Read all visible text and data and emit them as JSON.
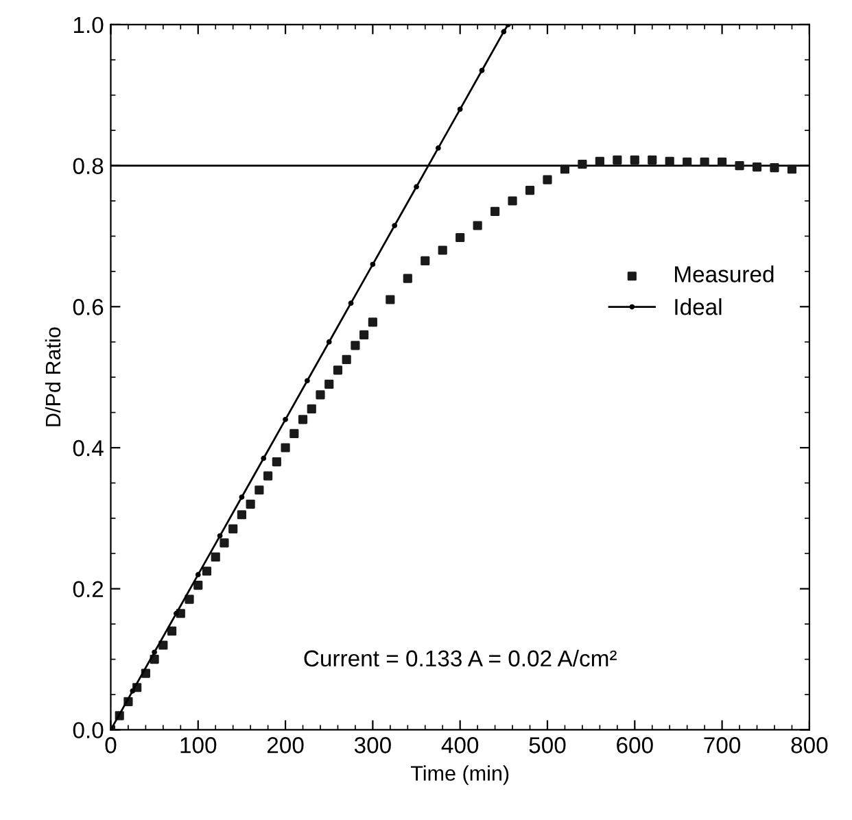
{
  "chart_data": {
    "type": "scatter",
    "xlabel": "Time (min)",
    "ylabel": "D/Pd Ratio",
    "annotations": [
      "Current = 0.133 A = 0.02 A/cm²"
    ],
    "xlim": [
      0,
      800
    ],
    "xticks": [
      0,
      100,
      200,
      300,
      400,
      500,
      600,
      700,
      800
    ],
    "ylim": [
      0,
      1
    ],
    "yticks": [
      {
        "value": 0,
        "label": "0.0"
      },
      0.2,
      0.4,
      0.6,
      0.8,
      {
        "value": 1,
        "label": "1.0"
      }
    ],
    "grid": false,
    "legend": "right",
    "ref_lines": [
      {
        "axis": "y",
        "value": 0.8,
        "color": "#000000"
      }
    ],
    "series": [
      {
        "name": "Measured",
        "marker": "square",
        "color": "#1a1a1a",
        "x": [
          0,
          10,
          20,
          30,
          40,
          50,
          60,
          70,
          80,
          90,
          100,
          110,
          120,
          130,
          140,
          150,
          160,
          170,
          180,
          190,
          200,
          210,
          220,
          230,
          240,
          250,
          260,
          270,
          280,
          290,
          300,
          320,
          340,
          360,
          380,
          400,
          420,
          440,
          460,
          480,
          500,
          520,
          540,
          560,
          580,
          600,
          620,
          640,
          660,
          680,
          700,
          720,
          740,
          760,
          780
        ],
        "values": [
          0,
          0.02,
          0.04,
          0.06,
          0.08,
          0.1,
          0.12,
          0.14,
          0.165,
          0.185,
          0.205,
          0.225,
          0.245,
          0.265,
          0.285,
          0.305,
          0.32,
          0.34,
          0.36,
          0.38,
          0.4,
          0.42,
          0.44,
          0.455,
          0.475,
          0.49,
          0.51,
          0.525,
          0.545,
          0.56,
          0.578,
          0.61,
          0.64,
          0.665,
          0.68,
          0.698,
          0.715,
          0.735,
          0.75,
          0.765,
          0.78,
          0.795,
          0.802,
          0.806,
          0.808,
          0.808,
          0.808,
          0.806,
          0.805,
          0.805,
          0.805,
          0.8,
          0.798,
          0.797,
          0.795
        ]
      },
      {
        "name": "Ideal",
        "type": "line",
        "marker": "circle",
        "color": "#000000",
        "x": [
          0,
          25,
          50,
          75,
          100,
          125,
          150,
          175,
          200,
          225,
          250,
          275,
          300,
          325,
          350,
          375,
          400,
          425,
          450,
          455
        ],
        "values": [
          0,
          0.055,
          0.11,
          0.165,
          0.22,
          0.275,
          0.33,
          0.385,
          0.44,
          0.495,
          0.55,
          0.605,
          0.66,
          0.715,
          0.77,
          0.825,
          0.88,
          0.935,
          0.99,
          1.0
        ]
      }
    ]
  }
}
